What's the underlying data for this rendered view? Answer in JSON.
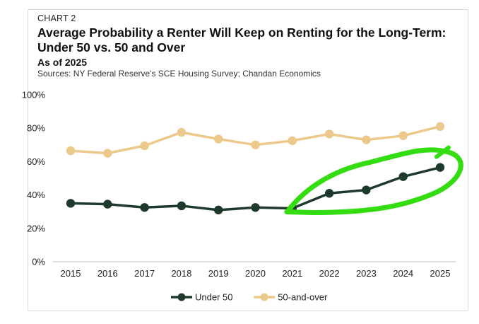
{
  "chart_data": {
    "type": "line",
    "label": "CHART 2",
    "title_line1": "Average Probability a Renter Will Keep on Renting for the Long-Term:",
    "title_line2": "Under 50 vs. 50 and Over",
    "subtitle": "As of 2025",
    "source": "Sources: NY Federal Reserve's SCE Housing Survey; Chandan Economics",
    "x": [
      "2015",
      "2016",
      "2017",
      "2018",
      "2019",
      "2020",
      "2021",
      "2022",
      "2023",
      "2024",
      "2025"
    ],
    "ylim": [
      0,
      100
    ],
    "yticks": [
      "0%",
      "20%",
      "40%",
      "60%",
      "80%",
      "100%"
    ],
    "series": [
      {
        "name": "Under 50",
        "color": "#1e3a2c",
        "values": [
          35,
          34.5,
          32.5,
          33.5,
          31,
          32.5,
          32,
          41,
          43,
          51,
          56.5
        ]
      },
      {
        "name": "50-and-over",
        "color": "#ecc98a",
        "values": [
          66.5,
          65,
          69.5,
          77.5,
          73.5,
          70,
          72.5,
          76.5,
          73,
          75.5,
          81
        ]
      }
    ],
    "annotation": {
      "type": "hand-drawn-highlight",
      "color": "#33dd11",
      "covers_years": [
        "2021",
        "2022",
        "2023",
        "2024",
        "2025"
      ]
    }
  }
}
